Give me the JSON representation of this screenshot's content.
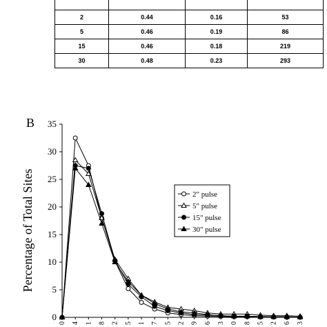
{
  "table": {
    "rows": [
      [
        "",
        "",
        "",
        ""
      ],
      [
        "2",
        "0.44",
        "0.16",
        "53"
      ],
      [
        "5",
        "0.46",
        "0.19",
        "86"
      ],
      [
        "15",
        "0.46",
        "0.18",
        "219"
      ],
      [
        "30",
        "0.48",
        "0.23",
        "293"
      ]
    ]
  },
  "panel_label": "B",
  "chart_data": {
    "type": "line",
    "title": "",
    "xlabel": "",
    "ylabel": "Percentage of Total Sites",
    "ylim": [
      0,
      35
    ],
    "yticks": [
      0,
      5,
      10,
      15,
      20,
      25,
      30,
      35
    ],
    "x_tick_labels": [
      "0",
      "4",
      "1",
      "8",
      "2",
      "5",
      "1",
      "7",
      "5",
      "2",
      "9",
      "6",
      "3",
      "0",
      "8",
      "5",
      "2",
      "6",
      "3"
    ],
    "legend_position": "right-middle",
    "series": [
      {
        "name": "2\" pulse",
        "marker": "open-circle",
        "values": [
          0,
          32.5,
          27.5,
          18.0,
          10.2,
          5.2,
          2.7,
          1.5,
          0.8,
          0.5,
          0.3,
          0.2,
          0.15,
          0.1,
          0.1,
          0.05,
          0.05,
          0,
          0
        ]
      },
      {
        "name": "5\" pulse",
        "marker": "open-triangle",
        "values": [
          0,
          28.5,
          26.0,
          18.0,
          10.5,
          7.0,
          4.0,
          2.8,
          1.8,
          1.5,
          1.2,
          0.8,
          0.6,
          0.6,
          0.6,
          0.4,
          0.3,
          0.3,
          0.2
        ]
      },
      {
        "name": "15\" pulse",
        "marker": "filled-circle",
        "values": [
          0,
          27.5,
          27.0,
          18.8,
          10.3,
          6.0,
          3.7,
          2.0,
          1.2,
          0.8,
          0.5,
          0.4,
          0.3,
          0.2,
          0.2,
          0.15,
          0.1,
          0.1,
          0.05
        ]
      },
      {
        "name": "30\" pulse",
        "marker": "filled-triangle",
        "values": [
          0,
          27.0,
          24.0,
          17.0,
          10.0,
          6.5,
          4.0,
          2.5,
          1.5,
          1.0,
          0.8,
          0.5,
          0.3,
          0.2,
          0.2,
          0.1,
          0.1,
          0.1,
          0.05
        ]
      }
    ]
  }
}
